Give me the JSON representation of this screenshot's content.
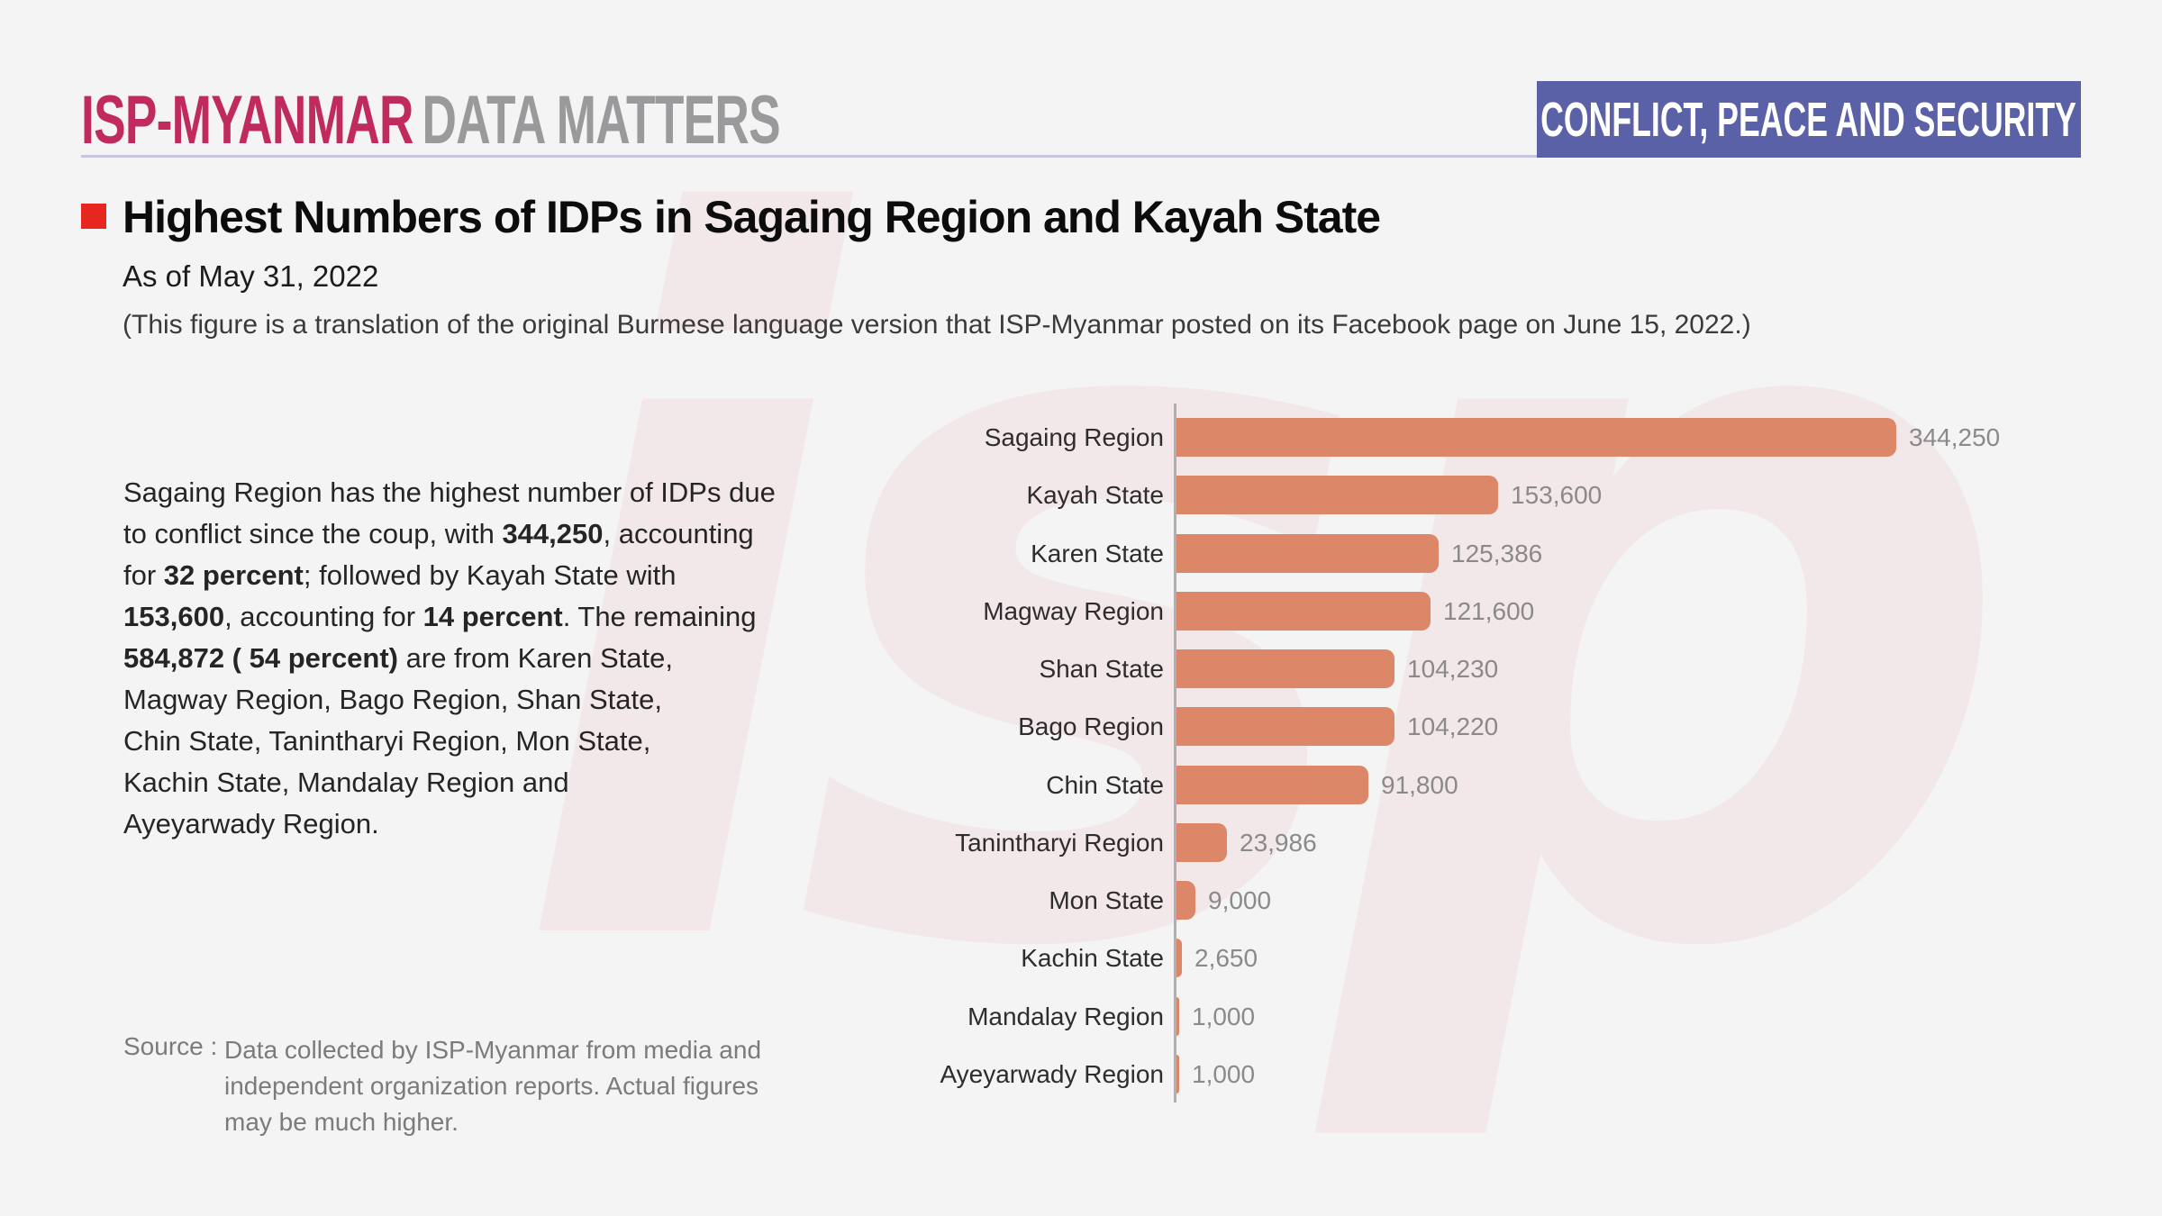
{
  "page": {
    "background": "#f4f4f4"
  },
  "watermark": {
    "text": "isp",
    "color": "#f3e8e9"
  },
  "header": {
    "logo_primary": "ISP-MYANMAR",
    "logo_primary_color": "#c02a5e",
    "logo_secondary": "DATA MATTERS",
    "logo_secondary_color": "#9a9a9c",
    "divider_color": "#c6c4df",
    "badge": {
      "label": "CONFLICT, PEACE AND SECURITY",
      "bg": "#5b61a6",
      "fg": "#ffffff"
    }
  },
  "title_block": {
    "bullet_color": "#e6261f",
    "title": "Highest Numbers of IDPs in Sagaing Region and Kayah State",
    "subtitle": "As of May 31, 2022",
    "note": "(This figure is a translation of the original Burmese language version that ISP-Myanmar posted on its Facebook page on June 15, 2022.)"
  },
  "summary": {
    "lines": [
      [
        {
          "t": "Sagaing Region has the highest number of IDPs due",
          "b": false
        }
      ],
      [
        {
          "t": "to conflict since the coup, with ",
          "b": false
        },
        {
          "t": "344,250",
          "b": true
        },
        {
          "t": ", accounting",
          "b": false
        }
      ],
      [
        {
          "t": "for ",
          "b": false
        },
        {
          "t": "32 percent",
          "b": true
        },
        {
          "t": "; followed by Kayah State with",
          "b": false
        }
      ],
      [
        {
          "t": "153,600",
          "b": true
        },
        {
          "t": ", accounting for ",
          "b": false
        },
        {
          "t": "14 percent",
          "b": true
        },
        {
          "t": ".  The remaining",
          "b": false
        }
      ],
      [
        {
          "t": "584,872 ( 54 percent)",
          "b": true
        },
        {
          "t": " are from Karen State,",
          "b": false
        }
      ],
      [
        {
          "t": "Magway Region, Bago Region, Shan State,",
          "b": false
        }
      ],
      [
        {
          "t": "Chin State, Tanintharyi Region, Mon State,",
          "b": false
        }
      ],
      [
        {
          "t": "Kachin State, Mandalay Region and",
          "b": false
        }
      ],
      [
        {
          "t": "Ayeyarwady Region.",
          "b": false
        }
      ]
    ]
  },
  "source": {
    "label": "Source :",
    "lines": [
      "Data collected by ISP-Myanmar from media and",
      "independent organization reports. Actual figures",
      "may be much higher."
    ]
  },
  "chart_data": {
    "type": "bar",
    "orientation": "horizontal",
    "title": "",
    "categories": [
      "Sagaing Region",
      "Kayah State",
      "Karen State",
      "Magway Region",
      "Shan State",
      "Bago Region",
      "Chin State",
      "Tanintharyi Region",
      "Mon State",
      "Kachin State",
      "Mandalay Region",
      "Ayeyarwady Region"
    ],
    "values": [
      344250,
      153600,
      125386,
      121600,
      104230,
      104220,
      91800,
      23986,
      9000,
      2650,
      1000,
      1000
    ],
    "value_labels": [
      "344,250",
      "153,600",
      "125,386",
      "121,600",
      "104,230",
      "104,220",
      "91,800",
      "23,986",
      "9,000",
      "2,650",
      "1,000",
      "1,000"
    ],
    "xlim": [
      0,
      344250
    ],
    "grid": false,
    "legend": false,
    "bar_color": "#dc8768",
    "axis_color": "#b0b0b0",
    "category_label_color": "#2d2d2d",
    "value_label_color": "#8a8a8a"
  }
}
